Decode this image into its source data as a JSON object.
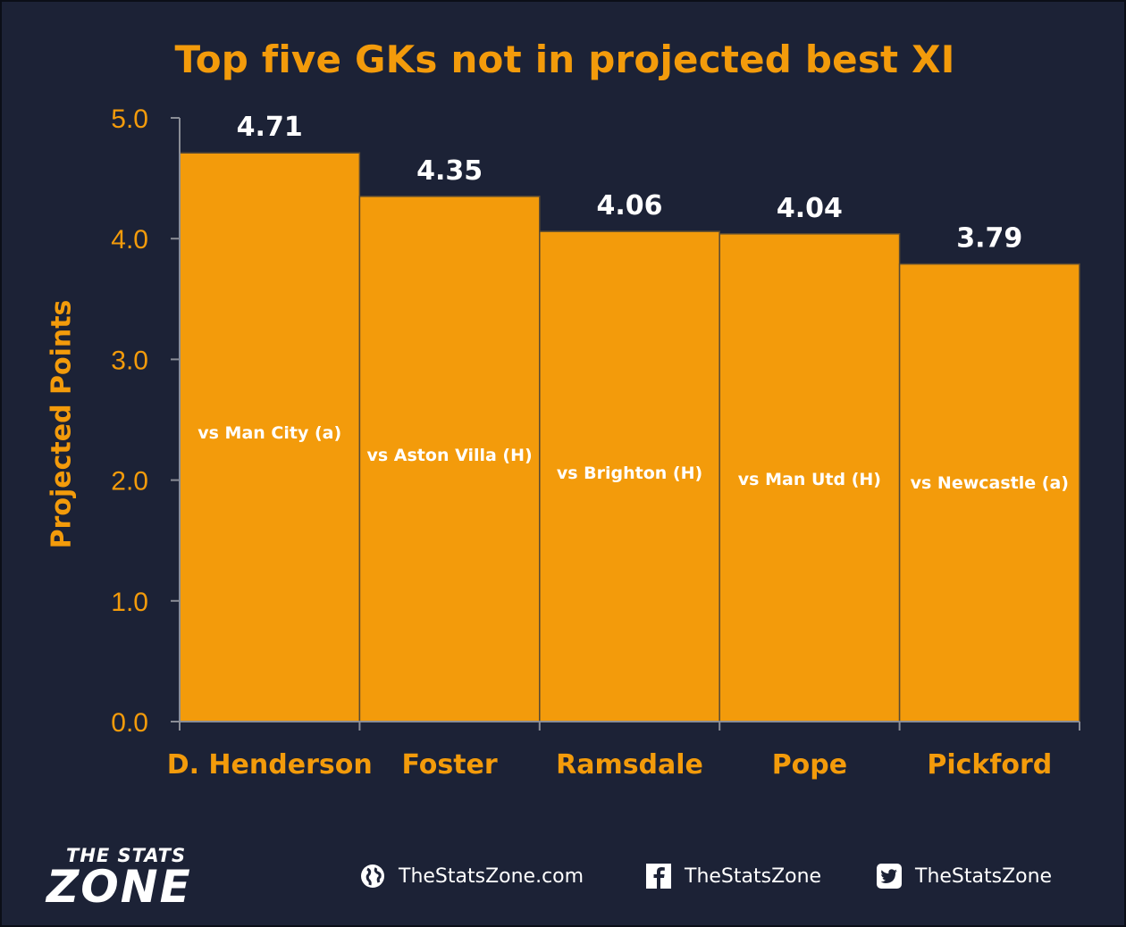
{
  "chart_data": {
    "type": "bar",
    "title": "Top five GKs not in projected best XI",
    "ylabel": "Projected Points",
    "xlabel": "",
    "categories": [
      "D. Henderson",
      "Foster",
      "Ramsdale",
      "Pope",
      "Pickford"
    ],
    "values": [
      4.71,
      4.35,
      4.06,
      4.04,
      3.79
    ],
    "value_labels": [
      "4.71",
      "4.35",
      "4.06",
      "4.04",
      "3.79"
    ],
    "annotations": [
      "vs Man City (a)",
      "vs Aston Villa (H)",
      "vs Brighton (H)",
      "vs Man Utd (H)",
      "vs Newcastle (a)"
    ],
    "ylim": [
      0,
      5
    ],
    "yticks": [
      "0.0",
      "1.0",
      "2.0",
      "3.0",
      "4.0",
      "5.0"
    ],
    "grid": false,
    "legend": "none"
  },
  "colors": {
    "background": "#1c2236",
    "bar": "#f39b0b",
    "bar_border": "#5a4a32",
    "accent_text": "#f39b0b",
    "value_text": "#ffffff",
    "axis": "#8a8d96"
  },
  "footer": {
    "logo_top": "THE STATS",
    "logo_main": "ZONE",
    "website": "TheStatsZone.com",
    "website_icon": "globe-icon",
    "facebook": "TheStatsZone",
    "facebook_icon": "facebook-icon",
    "twitter": "TheStatsZone",
    "twitter_icon": "twitter-icon"
  }
}
